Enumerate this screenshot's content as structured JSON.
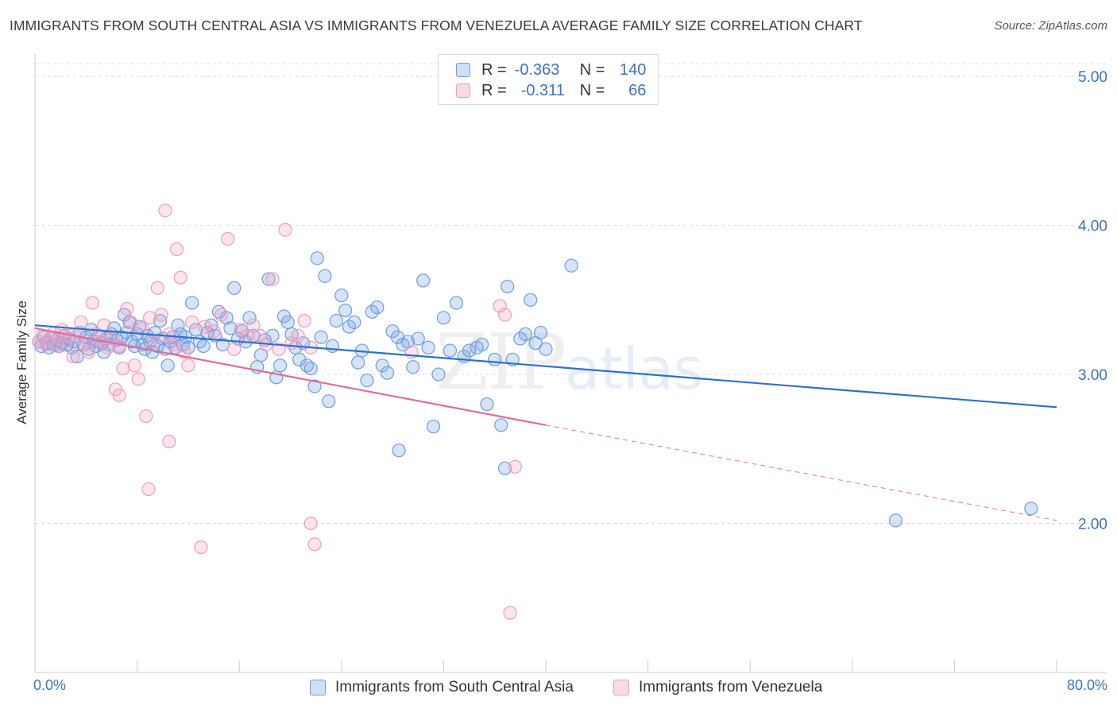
{
  "title": "IMMIGRANTS FROM SOUTH CENTRAL ASIA VS IMMIGRANTS FROM VENEZUELA AVERAGE FAMILY SIZE CORRELATION CHART",
  "source": "Source: ZipAtlas.com",
  "watermark": {
    "zip": "ZIP",
    "atlas": "atlas"
  },
  "stats": [
    {
      "r_label": "R =",
      "r_value": "-0.363",
      "n_label": "N =",
      "n_value": "140"
    },
    {
      "r_label": "R =",
      "r_value": "-0.311",
      "n_label": "N =",
      "n_value": "66"
    }
  ],
  "legend": [
    {
      "label": "Immigrants from South Central Asia"
    },
    {
      "label": "Immigrants from Venezuela"
    }
  ],
  "colors": {
    "blue_line": "#2f6fd0",
    "blue_fill": "rgba(120,165,230,0.30)",
    "blue_stroke": "#6f9be0",
    "pink_line": "#e46a96",
    "pink_fill": "rgba(245,160,190,0.28)",
    "pink_stroke": "#ee9db9",
    "tick_text": "#3d72c4",
    "grid": "#dddddd"
  },
  "chart_data": {
    "type": "scatter",
    "title": "IMMIGRANTS FROM SOUTH CENTRAL ASIA VS IMMIGRANTS FROM VENEZUELA AVERAGE FAMILY SIZE CORRELATION CHART",
    "xlabel": "",
    "ylabel": "Average Family Size",
    "xlim": [
      0,
      80
    ],
    "ylim": [
      1.0,
      5.15
    ],
    "x_tick_labels": [
      {
        "value": 0,
        "label": "0.0%"
      },
      {
        "value": 80,
        "label": "80.0%"
      }
    ],
    "y_tick_labels": [
      {
        "value": 2.0,
        "label": "2.00"
      },
      {
        "value": 3.0,
        "label": "3.00"
      },
      {
        "value": 4.0,
        "label": "4.00"
      },
      {
        "value": 5.0,
        "label": "5.00"
      }
    ],
    "series": [
      {
        "name": "Immigrants from South Central Asia",
        "color": "blue",
        "points": [
          [
            0.3,
            3.22
          ],
          [
            0.5,
            3.19
          ],
          [
            0.7,
            3.25
          ],
          [
            0.9,
            3.21
          ],
          [
            1.1,
            3.18
          ],
          [
            1.3,
            3.24
          ],
          [
            1.5,
            3.2
          ],
          [
            1.7,
            3.23
          ],
          [
            1.9,
            3.19
          ],
          [
            2.1,
            3.21
          ],
          [
            2.3,
            3.26
          ],
          [
            2.5,
            3.2
          ],
          [
            2.7,
            3.24
          ],
          [
            2.9,
            3.18
          ],
          [
            3.1,
            3.22
          ],
          [
            3.3,
            3.12
          ],
          [
            3.5,
            3.28
          ],
          [
            3.8,
            3.2
          ],
          [
            4.0,
            3.25
          ],
          [
            4.2,
            3.17
          ],
          [
            4.4,
            3.3
          ],
          [
            4.6,
            3.22
          ],
          [
            4.8,
            3.19
          ],
          [
            5.0,
            3.26
          ],
          [
            5.2,
            3.21
          ],
          [
            5.4,
            3.15
          ],
          [
            5.6,
            3.24
          ],
          [
            5.8,
            3.2
          ],
          [
            6.0,
            3.27
          ],
          [
            6.2,
            3.31
          ],
          [
            6.4,
            3.23
          ],
          [
            6.6,
            3.18
          ],
          [
            6.8,
            3.25
          ],
          [
            7.0,
            3.4
          ],
          [
            7.2,
            3.28
          ],
          [
            7.4,
            3.35
          ],
          [
            7.6,
            3.22
          ],
          [
            7.8,
            3.19
          ],
          [
            8.0,
            3.27
          ],
          [
            8.2,
            3.32
          ],
          [
            8.4,
            3.2
          ],
          [
            8.6,
            3.17
          ],
          [
            8.8,
            3.26
          ],
          [
            9.0,
            3.22
          ],
          [
            9.2,
            3.15
          ],
          [
            9.4,
            3.28
          ],
          [
            9.6,
            3.19
          ],
          [
            9.8,
            3.36
          ],
          [
            10.0,
            3.24
          ],
          [
            10.2,
            3.17
          ],
          [
            10.4,
            3.06
          ],
          [
            10.6,
            3.22
          ],
          [
            10.8,
            3.25
          ],
          [
            11.0,
            3.18
          ],
          [
            11.2,
            3.33
          ],
          [
            11.4,
            3.27
          ],
          [
            11.6,
            3.2
          ],
          [
            11.8,
            3.25
          ],
          [
            12.0,
            3.18
          ],
          [
            12.3,
            3.48
          ],
          [
            12.6,
            3.3
          ],
          [
            12.9,
            3.22
          ],
          [
            13.2,
            3.19
          ],
          [
            13.5,
            3.28
          ],
          [
            13.8,
            3.33
          ],
          [
            14.1,
            3.26
          ],
          [
            14.4,
            3.42
          ],
          [
            14.7,
            3.2
          ],
          [
            15.0,
            3.38
          ],
          [
            15.3,
            3.31
          ],
          [
            15.6,
            3.58
          ],
          [
            15.9,
            3.24
          ],
          [
            16.2,
            3.29
          ],
          [
            16.5,
            3.22
          ],
          [
            16.8,
            3.38
          ],
          [
            17.1,
            3.26
          ],
          [
            17.4,
            3.05
          ],
          [
            17.7,
            3.13
          ],
          [
            18.0,
            3.23
          ],
          [
            18.3,
            3.64
          ],
          [
            18.6,
            3.26
          ],
          [
            18.9,
            2.98
          ],
          [
            19.2,
            3.06
          ],
          [
            19.5,
            3.39
          ],
          [
            19.8,
            3.35
          ],
          [
            20.1,
            3.27
          ],
          [
            20.4,
            3.18
          ],
          [
            20.7,
            3.1
          ],
          [
            21.0,
            3.21
          ],
          [
            21.3,
            3.06
          ],
          [
            21.6,
            3.04
          ],
          [
            21.9,
            2.92
          ],
          [
            22.1,
            3.78
          ],
          [
            22.4,
            3.25
          ],
          [
            22.7,
            3.66
          ],
          [
            23.0,
            2.82
          ],
          [
            23.3,
            3.19
          ],
          [
            23.6,
            3.36
          ],
          [
            24.0,
            3.53
          ],
          [
            24.3,
            3.43
          ],
          [
            24.6,
            3.32
          ],
          [
            25.0,
            3.35
          ],
          [
            25.3,
            3.08
          ],
          [
            25.6,
            3.16
          ],
          [
            26.0,
            2.96
          ],
          [
            26.4,
            3.42
          ],
          [
            26.8,
            3.45
          ],
          [
            27.2,
            3.06
          ],
          [
            27.6,
            3.01
          ],
          [
            28.0,
            3.29
          ],
          [
            28.4,
            3.25
          ],
          [
            28.8,
            3.2
          ],
          [
            29.2,
            3.22
          ],
          [
            29.6,
            3.05
          ],
          [
            30.0,
            3.24
          ],
          [
            30.4,
            3.63
          ],
          [
            30.8,
            3.18
          ],
          [
            31.2,
            2.65
          ],
          [
            31.6,
            3.0
          ],
          [
            32.0,
            3.38
          ],
          [
            32.5,
            3.16
          ],
          [
            33.0,
            3.48
          ],
          [
            33.6,
            3.12
          ],
          [
            34.0,
            3.16
          ],
          [
            34.6,
            3.18
          ],
          [
            35.0,
            3.2
          ],
          [
            35.4,
            2.8
          ],
          [
            36.0,
            3.1
          ],
          [
            36.5,
            2.66
          ],
          [
            37.0,
            3.59
          ],
          [
            37.4,
            3.1
          ],
          [
            38.0,
            3.24
          ],
          [
            38.4,
            3.27
          ],
          [
            38.8,
            3.5
          ],
          [
            39.2,
            3.21
          ],
          [
            39.6,
            3.28
          ],
          [
            40.0,
            3.17
          ],
          [
            42.0,
            3.73
          ],
          [
            28.5,
            2.49
          ],
          [
            36.8,
            2.37
          ],
          [
            67.4,
            2.02
          ],
          [
            78.0,
            2.1
          ]
        ],
        "trend": {
          "x": [
            0,
            80
          ],
          "y": [
            3.33,
            2.78
          ],
          "style": "solid"
        }
      },
      {
        "name": "Immigrants from Venezuela",
        "color": "pink",
        "points": [
          [
            0.3,
            3.22
          ],
          [
            0.6,
            3.26
          ],
          [
            0.9,
            3.2
          ],
          [
            1.2,
            3.24
          ],
          [
            1.5,
            3.28
          ],
          [
            1.8,
            3.19
          ],
          [
            2.1,
            3.3
          ],
          [
            2.4,
            3.22
          ],
          [
            2.7,
            3.26
          ],
          [
            3.0,
            3.12
          ],
          [
            3.3,
            3.25
          ],
          [
            3.6,
            3.35
          ],
          [
            3.9,
            3.2
          ],
          [
            4.2,
            3.15
          ],
          [
            4.5,
            3.48
          ],
          [
            4.8,
            3.27
          ],
          [
            5.1,
            3.22
          ],
          [
            5.4,
            3.33
          ],
          [
            5.7,
            3.18
          ],
          [
            6.0,
            3.24
          ],
          [
            6.3,
            2.9
          ],
          [
            6.6,
            3.19
          ],
          [
            6.9,
            3.04
          ],
          [
            7.2,
            3.44
          ],
          [
            7.5,
            3.35
          ],
          [
            7.8,
            3.06
          ],
          [
            8.1,
            2.97
          ],
          [
            8.4,
            3.31
          ],
          [
            8.7,
            2.72
          ],
          [
            9.0,
            3.38
          ],
          [
            9.3,
            3.22
          ],
          [
            9.6,
            3.58
          ],
          [
            9.9,
            3.4
          ],
          [
            10.2,
            4.1
          ],
          [
            10.5,
            3.27
          ],
          [
            10.8,
            3.2
          ],
          [
            11.1,
            3.84
          ],
          [
            11.4,
            3.65
          ],
          [
            11.7,
            3.15
          ],
          [
            12.0,
            3.06
          ],
          [
            12.3,
            3.35
          ],
          [
            13.3,
            3.32
          ],
          [
            14.0,
            3.29
          ],
          [
            14.6,
            3.4
          ],
          [
            15.1,
            3.91
          ],
          [
            15.6,
            3.17
          ],
          [
            16.1,
            3.3
          ],
          [
            16.6,
            3.26
          ],
          [
            17.1,
            3.33
          ],
          [
            17.6,
            3.26
          ],
          [
            18.1,
            3.2
          ],
          [
            18.6,
            3.64
          ],
          [
            19.1,
            3.17
          ],
          [
            19.6,
            3.97
          ],
          [
            20.1,
            3.21
          ],
          [
            20.6,
            3.26
          ],
          [
            21.1,
            3.36
          ],
          [
            21.6,
            3.18
          ],
          [
            6.6,
            2.86
          ],
          [
            8.9,
            2.23
          ],
          [
            10.5,
            2.55
          ],
          [
            13.0,
            1.84
          ],
          [
            21.6,
            2.0
          ],
          [
            21.9,
            1.86
          ],
          [
            36.4,
            3.46
          ],
          [
            36.8,
            3.4
          ],
          [
            37.6,
            2.38
          ],
          [
            29.5,
            3.15
          ],
          [
            37.2,
            1.4
          ]
        ],
        "trend": {
          "x": [
            0,
            40
          ],
          "y": [
            3.31,
            2.66
          ],
          "style": "solid"
        },
        "trend_extension": {
          "x": [
            40,
            80
          ],
          "y": [
            2.66,
            2.02
          ],
          "style": "dashed"
        }
      }
    ]
  }
}
